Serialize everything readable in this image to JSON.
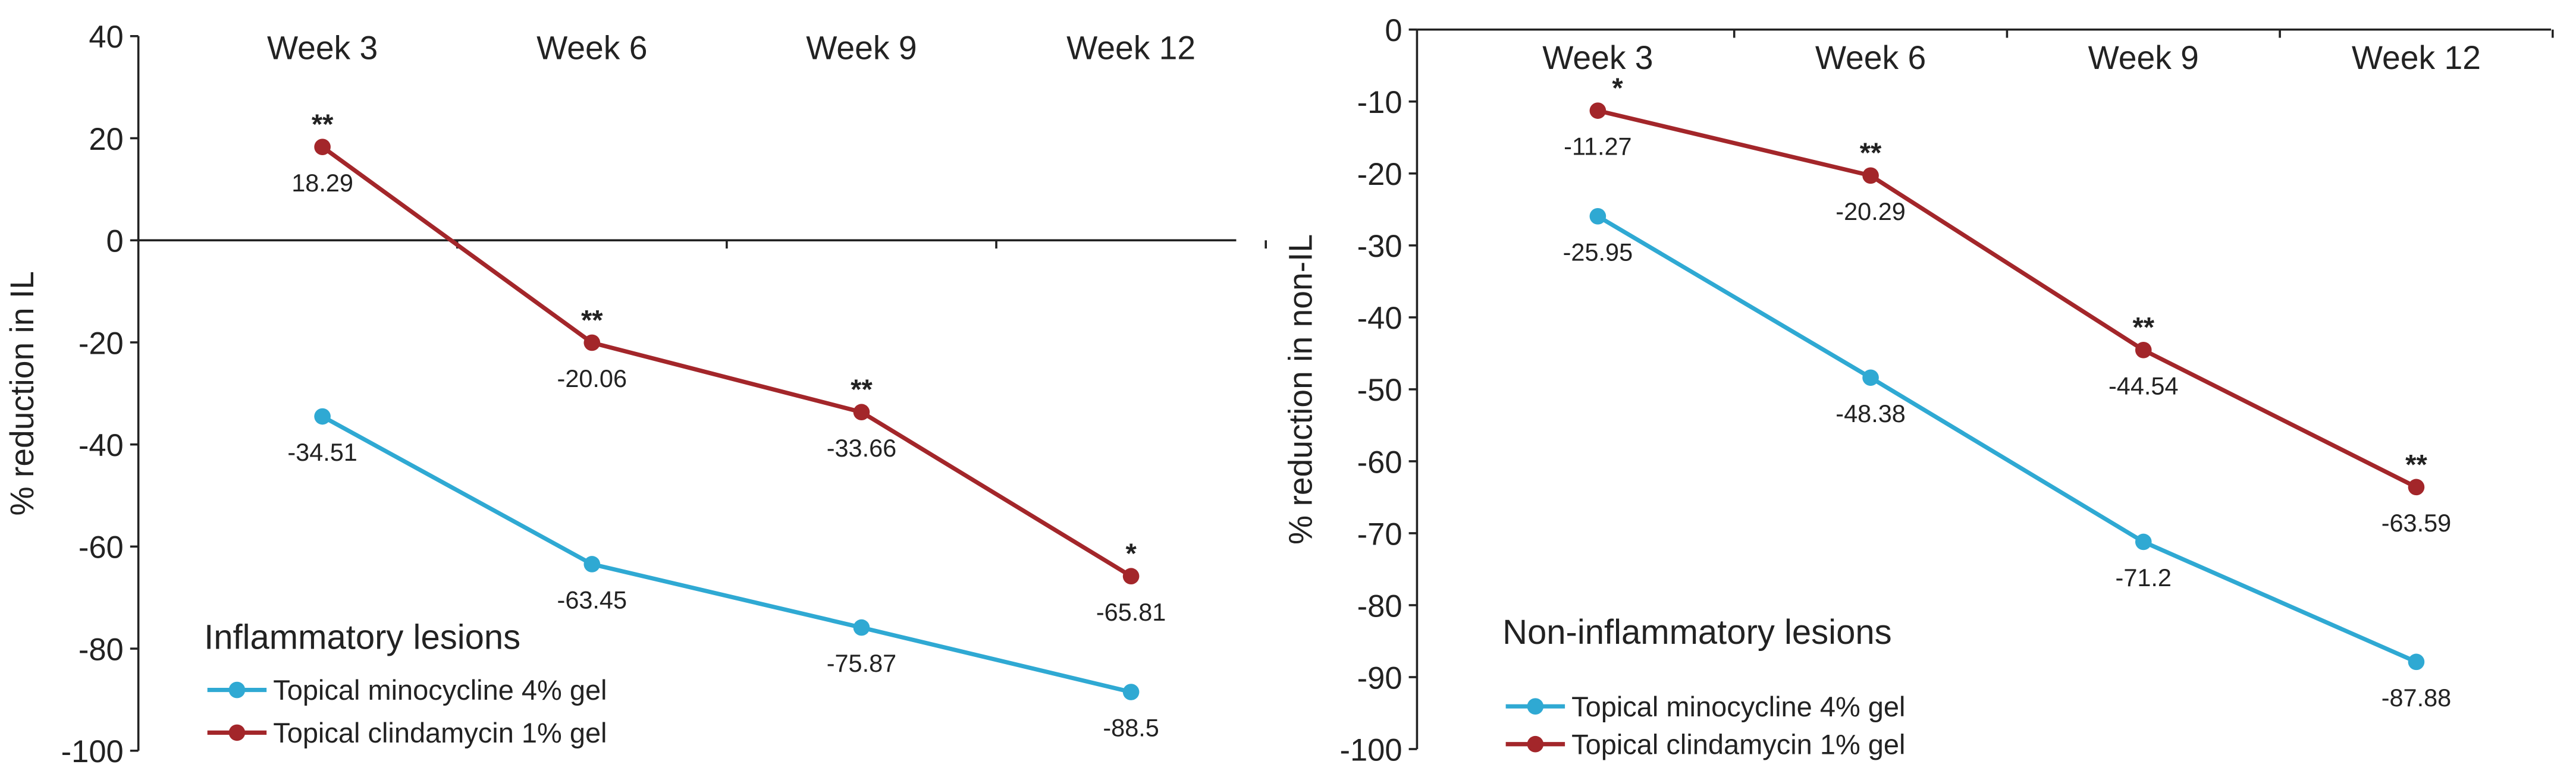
{
  "chart_data": [
    {
      "type": "line",
      "title": "Inflammatory lesions",
      "ylabel": "% reduction in IL",
      "xlabel": "",
      "categories": [
        "Week 3",
        "Week 6",
        "Week 9",
        "Week 12"
      ],
      "ylim": [
        -100,
        40
      ],
      "yticks": [
        40,
        20,
        0,
        -20,
        -40,
        -60,
        -80,
        -100
      ],
      "x_axis_at": 0,
      "legend_position": "bottom-left",
      "series": [
        {
          "name": "Topical minocycline 4% gel",
          "color": "#2fa9d3",
          "values": [
            -34.51,
            -63.45,
            -75.87,
            -88.5
          ],
          "labels": [
            "-34.51",
            "-63.45",
            "-75.87",
            "-88.5"
          ],
          "significance": [
            "",
            "",
            "",
            ""
          ]
        },
        {
          "name": "Topical clindamycin 1% gel",
          "color": "#a3262a",
          "values": [
            18.29,
            -20.06,
            -33.66,
            -65.81
          ],
          "labels": [
            "18.29",
            "-20.06",
            "-33.66",
            "-65.81"
          ],
          "significance": [
            "**",
            "**",
            "**",
            "*"
          ]
        }
      ]
    },
    {
      "type": "line",
      "title": "Non-inflammatory lesions",
      "ylabel": "% reduction in non-IL",
      "xlabel": "",
      "categories": [
        "Week 3",
        "Week 6",
        "Week 9",
        "Week 12"
      ],
      "ylim": [
        -100,
        0
      ],
      "yticks": [
        0,
        -10,
        -20,
        -30,
        -40,
        -50,
        -60,
        -70,
        -80,
        -90,
        -100
      ],
      "x_axis_at": 0,
      "legend_position": "bottom-left",
      "series": [
        {
          "name": "Topical minocycline 4% gel",
          "color": "#2fa9d3",
          "values": [
            -25.95,
            -48.38,
            -71.2,
            -87.88
          ],
          "labels": [
            "-25.95",
            "-48.38",
            "-71.2",
            "-87.88"
          ],
          "significance": [
            "",
            "",
            "",
            ""
          ]
        },
        {
          "name": "Topical clindamycin 1% gel",
          "color": "#a3262a",
          "values": [
            -11.27,
            -20.29,
            -44.54,
            -63.59
          ],
          "labels": [
            "-11.27",
            "-20.29",
            "-44.54",
            "-63.59"
          ],
          "significance": [
            "*",
            "**",
            "**",
            "**"
          ]
        }
      ]
    }
  ]
}
